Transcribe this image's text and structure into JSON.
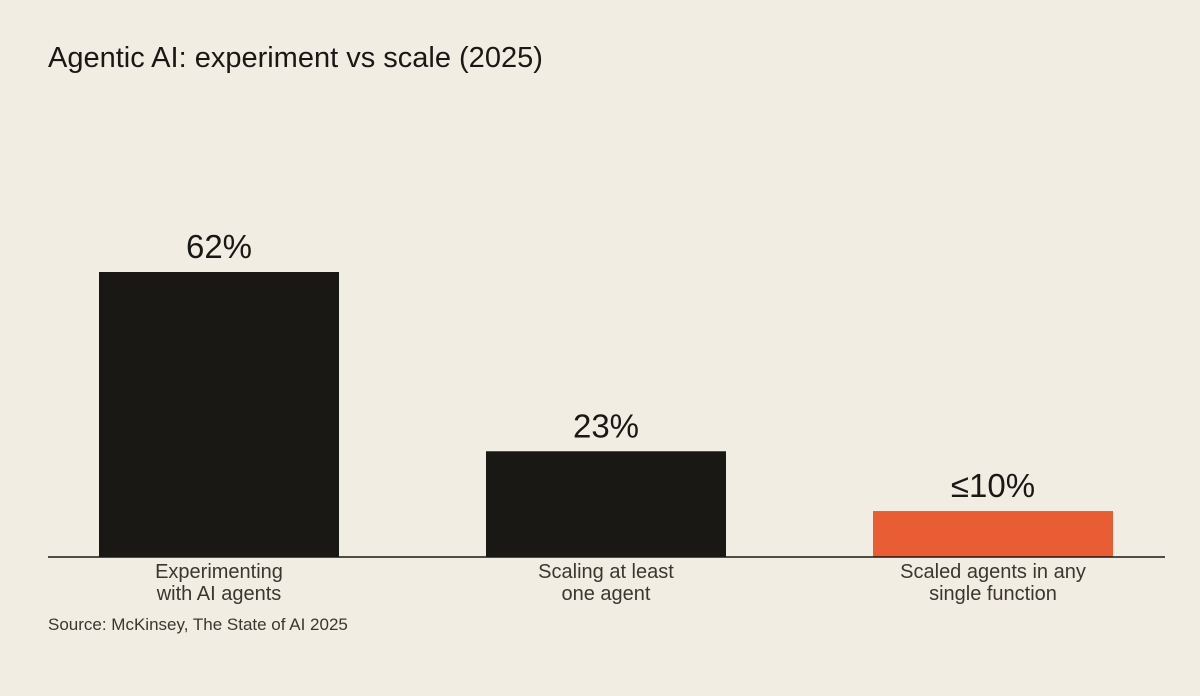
{
  "chart_data": {
    "type": "bar",
    "title": "Agentic AI: experiment vs scale (2025)",
    "categories": [
      "Experimenting with AI agents",
      "Scaling at least one agent",
      "Scaled agents in any single function"
    ],
    "category_lines": [
      [
        "Experimenting",
        "with AI agents"
      ],
      [
        "Scaling at least",
        "one agent"
      ],
      [
        "Scaled agents in any",
        "single function"
      ]
    ],
    "values": [
      62,
      23,
      10
    ],
    "value_labels": [
      "62%",
      "23%",
      "≤10%"
    ],
    "colors": [
      "#1a1814",
      "#1a1814",
      "#e85d33"
    ],
    "xlabel": "",
    "ylabel": "",
    "ylim": [
      0,
      62
    ],
    "grid": false,
    "source": "Source: McKinsey, The State of AI 2025"
  }
}
